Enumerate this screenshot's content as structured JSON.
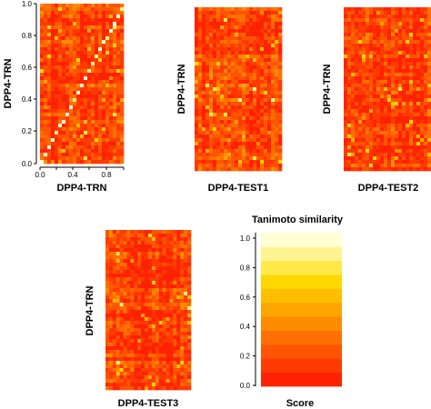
{
  "palette": [
    "#ff2200",
    "#ff3a00",
    "#ff5500",
    "#ff7000",
    "#ff8c00",
    "#ffa500",
    "#ffbe00",
    "#ffd700",
    "#ffe94a",
    "#fff491",
    "#ffffd4"
  ],
  "chart_data": [
    {
      "type": "heatmap",
      "name": "trn-vs-trn",
      "xlabel": "DPP4-TRN",
      "ylabel": "DPP4-TRN",
      "xlim": [
        0,
        1
      ],
      "ylim": [
        0,
        1
      ],
      "xticks": [
        "0.0",
        "0.4",
        "0.8"
      ],
      "yticks": [
        "0.0",
        "0.2",
        "0.4",
        "0.6",
        "0.8",
        "1.0"
      ],
      "diagonal_similarity": 1.0
    },
    {
      "type": "heatmap",
      "name": "trn-vs-test1",
      "xlabel": "DPP4-TEST1",
      "ylabel": "DPP4-TRN"
    },
    {
      "type": "heatmap",
      "name": "trn-vs-test2",
      "xlabel": "DPP4-TEST2",
      "ylabel": "DPP4-TRN"
    },
    {
      "type": "heatmap",
      "name": "trn-vs-test3",
      "xlabel": "DPP4-TEST3",
      "ylabel": "DPP4-TRN"
    }
  ],
  "color_key": {
    "title": "Tanimoto similarity",
    "xlabel": "Score",
    "range": [
      0,
      1
    ],
    "ticks": [
      "0.0",
      "0.2",
      "0.4",
      "0.6",
      "0.8",
      "1.0"
    ],
    "levels": 11
  }
}
